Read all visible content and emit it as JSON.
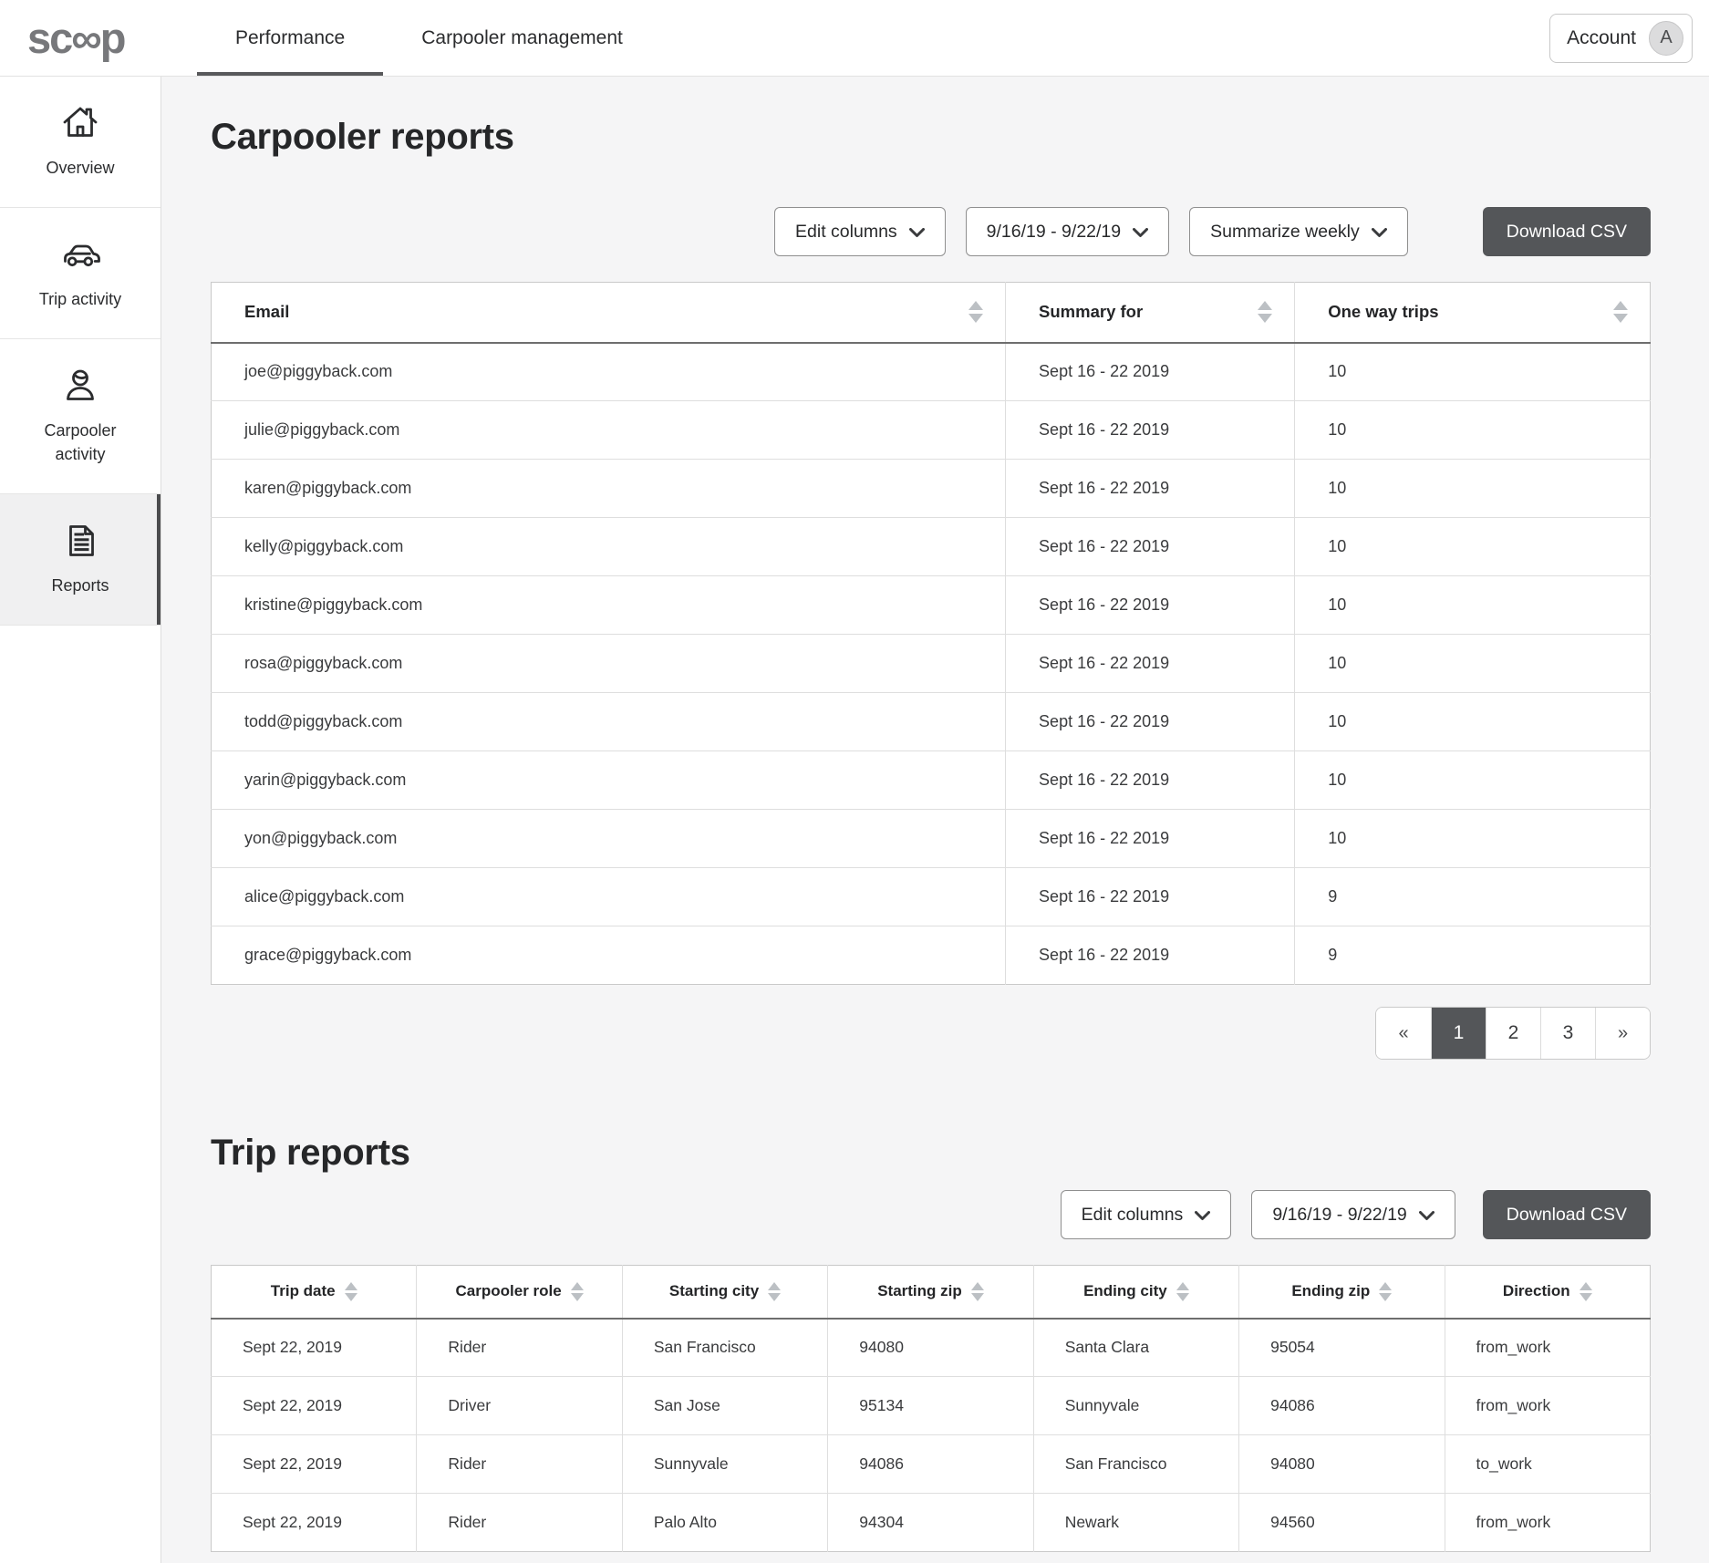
{
  "colors": {
    "accent_dark": "#545659",
    "text": "#2d2d2e",
    "background": "#f5f5f6",
    "table_border": "#c9c9c9",
    "sort_arrow": "#bcc0c4",
    "avatar_bg": "#dcdcdd",
    "active_tab_underline": "#58595b",
    "sidebar_active_bg": "#f0f0f1"
  },
  "header": {
    "logo_text": "sc∞p",
    "tabs": [
      {
        "label": "Performance",
        "active": true
      },
      {
        "label": "Carpooler management",
        "active": false
      }
    ],
    "account": {
      "label": "Account",
      "avatar_initial": "A"
    }
  },
  "sidebar": {
    "items": [
      {
        "label": "Overview",
        "icon": "home-icon",
        "active": false
      },
      {
        "label": "Trip activity",
        "icon": "car-icon",
        "active": false
      },
      {
        "label": "Carpooler activity",
        "icon": "person-icon",
        "active": false
      },
      {
        "label": "Reports",
        "icon": "document-icon",
        "active": true
      }
    ]
  },
  "carpooler_reports": {
    "title": "Carpooler reports",
    "toolbar": {
      "edit_columns_label": "Edit columns",
      "date_range_label": "9/16/19 - 9/22/19",
      "summarize_label": "Summarize weekly",
      "download_csv_label": "Download CSV"
    },
    "table": {
      "columns": [
        "Email",
        "Summary for",
        "One way trips"
      ],
      "rows": [
        [
          "joe@piggyback.com",
          "Sept 16 - 22 2019",
          "10"
        ],
        [
          "julie@piggyback.com",
          "Sept 16 - 22 2019",
          "10"
        ],
        [
          "karen@piggyback.com",
          "Sept 16 - 22 2019",
          "10"
        ],
        [
          "kelly@piggyback.com",
          "Sept 16 - 22 2019",
          "10"
        ],
        [
          "kristine@piggyback.com",
          "Sept 16 - 22 2019",
          "10"
        ],
        [
          "rosa@piggyback.com",
          "Sept 16 - 22 2019",
          "10"
        ],
        [
          "todd@piggyback.com",
          "Sept 16 - 22 2019",
          "10"
        ],
        [
          "yarin@piggyback.com",
          "Sept 16 - 22 2019",
          "10"
        ],
        [
          "yon@piggyback.com",
          "Sept 16 - 22 2019",
          "10"
        ],
        [
          "alice@piggyback.com",
          "Sept 16 - 22 2019",
          "9"
        ],
        [
          "grace@piggyback.com",
          "Sept 16 - 22 2019",
          "9"
        ]
      ]
    },
    "pagination": {
      "first_label": "«",
      "last_label": "»",
      "pages": [
        "1",
        "2",
        "3"
      ],
      "active_page": "1"
    }
  },
  "trip_reports": {
    "title": "Trip reports",
    "toolbar": {
      "edit_columns_label": "Edit columns",
      "date_range_label": "9/16/19 - 9/22/19",
      "download_csv_label": "Download CSV"
    },
    "table": {
      "columns": [
        "Trip date",
        "Carpooler role",
        "Starting city",
        "Starting zip",
        "Ending city",
        "Ending zip",
        "Direction"
      ],
      "rows": [
        [
          "Sept 22, 2019",
          "Rider",
          "San Francisco",
          "94080",
          "Santa Clara",
          "95054",
          "from_work"
        ],
        [
          "Sept 22, 2019",
          "Driver",
          "San Jose",
          "95134",
          "Sunnyvale",
          "94086",
          "from_work"
        ],
        [
          "Sept 22, 2019",
          "Rider",
          "Sunnyvale",
          "94086",
          "San Francisco",
          "94080",
          "to_work"
        ],
        [
          "Sept 22, 2019",
          "Rider",
          "Palo Alto",
          "94304",
          "Newark",
          "94560",
          "from_work"
        ]
      ]
    }
  }
}
